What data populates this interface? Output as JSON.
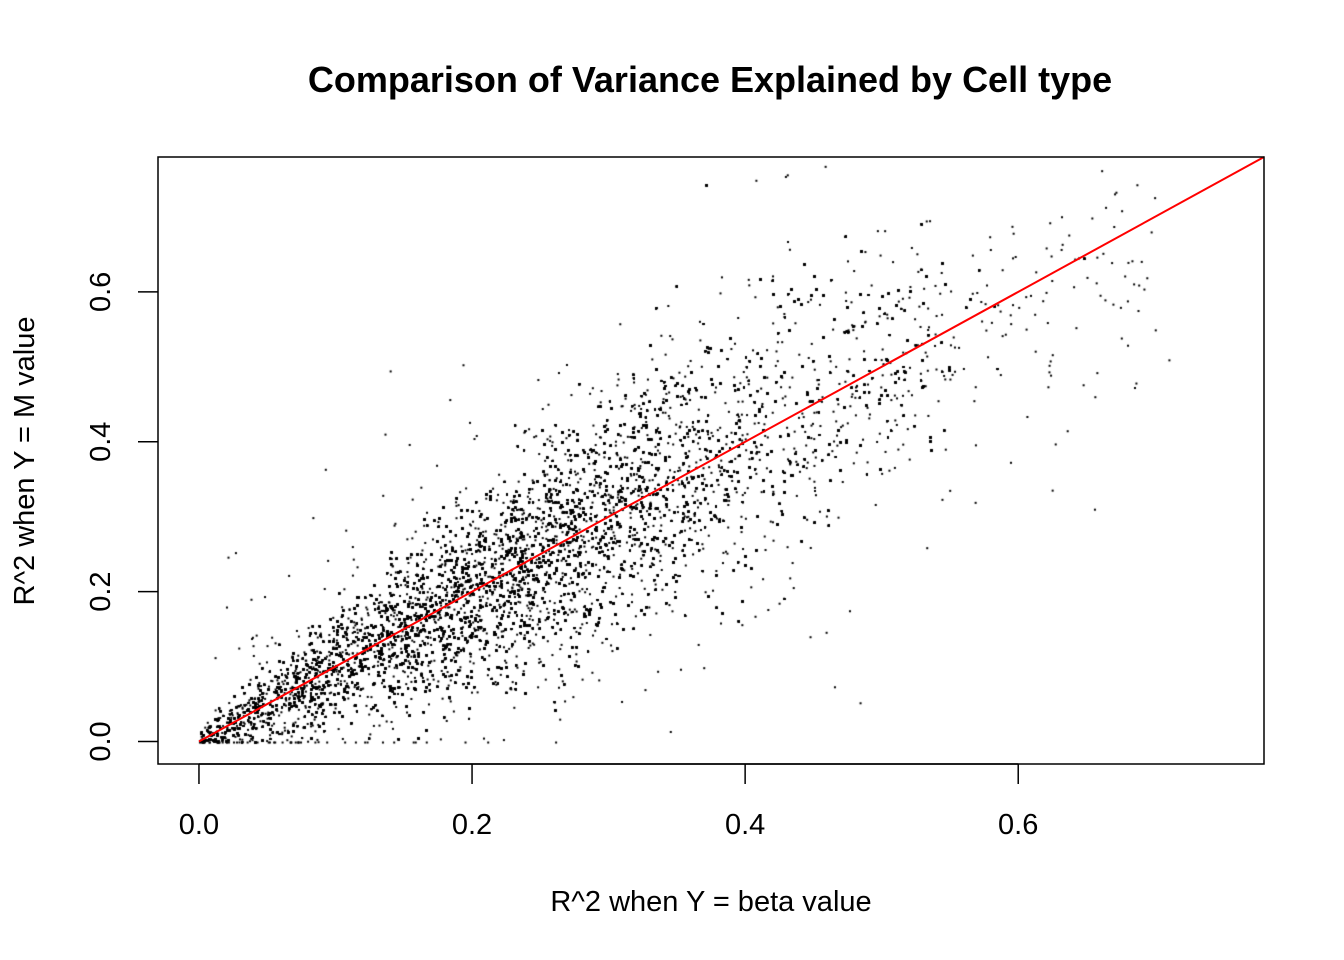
{
  "chart_data": {
    "type": "scatter",
    "title": "Comparison of Variance Explained by Cell type",
    "xlabel": "R^2 when Y = beta value",
    "ylabel": "R^2 when Y = M value",
    "xlim": [
      -0.03,
      0.78
    ],
    "ylim": [
      -0.03,
      0.78
    ],
    "x_ticks": [
      0.0,
      0.2,
      0.4,
      0.6
    ],
    "x_tick_labels": [
      "0.0",
      "0.2",
      "0.4",
      "0.6"
    ],
    "y_ticks": [
      0.0,
      0.2,
      0.4,
      0.6
    ],
    "y_tick_labels": [
      "0.0",
      "0.2",
      "0.4",
      "0.6"
    ],
    "grid": false,
    "legend": "none",
    "point_color": "#000000",
    "reference_line": {
      "type": "y = x",
      "intercept": 0,
      "slope": 1,
      "color": "#ff0000"
    },
    "point_count_approx": "very dense cloud (hundreds of thousands)",
    "sample_points": {
      "x": [
        0.0,
        0.02,
        0.03,
        0.05,
        0.07,
        0.08,
        0.1,
        0.12,
        0.14,
        0.15,
        0.18,
        0.2,
        0.22,
        0.25,
        0.28,
        0.3,
        0.33,
        0.35,
        0.38,
        0.4,
        0.43,
        0.45,
        0.48,
        0.5,
        0.52,
        0.55,
        0.58,
        0.6,
        0.62,
        0.65,
        0.68,
        0.7,
        0.71
      ],
      "y": [
        0.0,
        0.02,
        0.05,
        0.04,
        0.08,
        0.1,
        0.13,
        0.12,
        0.17,
        0.16,
        0.19,
        0.21,
        0.22,
        0.24,
        0.27,
        0.31,
        0.32,
        0.35,
        0.37,
        0.39,
        0.42,
        0.44,
        0.46,
        0.49,
        0.5,
        0.53,
        0.56,
        0.58,
        0.6,
        0.62,
        0.64,
        0.55,
        0.51
      ]
    }
  }
}
